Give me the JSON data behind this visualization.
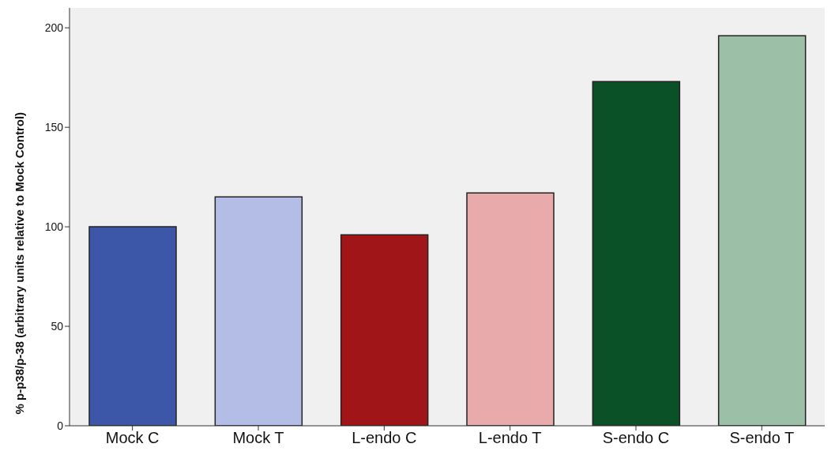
{
  "chart_data": {
    "type": "bar",
    "ylabel": "% p-p38/p-38 (arbitrary units relative to Mock Control)",
    "categories": [
      "Mock C",
      "Mock T",
      "L-endo C",
      "L-endo T",
      "S-endo C",
      "S-endo T"
    ],
    "values": [
      100,
      115,
      96,
      117,
      173,
      196
    ],
    "colors": [
      "#3c56a8",
      "#b4bde6",
      "#a01618",
      "#e8aaaa",
      "#0b5128",
      "#9cbfa8"
    ],
    "ylim": [
      0,
      210
    ],
    "yticks": [
      0,
      50,
      100,
      150,
      200
    ],
    "grid": false
  }
}
